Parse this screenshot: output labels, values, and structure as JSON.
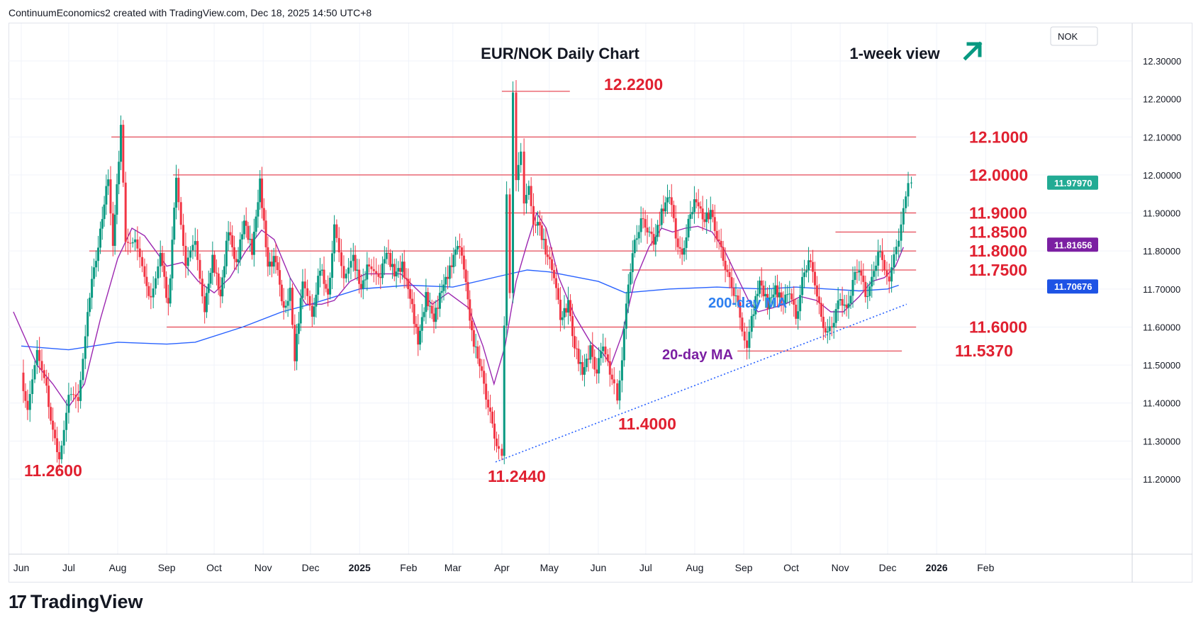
{
  "header": {
    "text": "ContinuumEconomics2 created with TradingView.com, Dec 18, 2025 14:50 UTC+8"
  },
  "chart_data": {
    "type": "candlestick",
    "title": "EUR/NOK Daily Chart",
    "view_label": "1-week view",
    "currency": "NOK",
    "y_ticks": [
      "12.30000",
      "12.20000",
      "12.10000",
      "12.00000",
      "11.90000",
      "11.80000",
      "11.70000",
      "11.60000",
      "11.50000",
      "11.40000",
      "11.30000",
      "11.20000"
    ],
    "ylim": [
      11.13,
      12.37
    ],
    "x_labels": [
      {
        "label": "Jun",
        "day": 0
      },
      {
        "label": "Jul",
        "day": 30
      },
      {
        "label": "Aug",
        "day": 61
      },
      {
        "label": "Sep",
        "day": 92
      },
      {
        "label": "Oct",
        "day": 122
      },
      {
        "label": "Nov",
        "day": 153
      },
      {
        "label": "Dec",
        "day": 183
      },
      {
        "label": "2025",
        "day": 214
      },
      {
        "label": "Feb",
        "day": 245
      },
      {
        "label": "Mar",
        "day": 273
      },
      {
        "label": "Apr",
        "day": 304
      },
      {
        "label": "May",
        "day": 334
      },
      {
        "label": "Jun",
        "day": 365
      },
      {
        "label": "Jul",
        "day": 395
      },
      {
        "label": "Aug",
        "day": 426
      },
      {
        "label": "Sep",
        "day": 457
      },
      {
        "label": "Oct",
        "day": 487
      },
      {
        "label": "Nov",
        "day": 518
      },
      {
        "label": "Dec",
        "day": 548
      },
      {
        "label": "2026",
        "day": 579
      },
      {
        "label": "Feb",
        "day": 610
      }
    ],
    "levels": [
      {
        "label": "12.2200",
        "value": 12.22,
        "from_day": 304,
        "to_day": 347
      },
      {
        "label": "12.1000",
        "value": 12.1,
        "from_day": 57,
        "to_day": 566
      },
      {
        "label": "12.0000",
        "value": 12.0,
        "from_day": 96,
        "to_day": 566
      },
      {
        "label": "11.9000",
        "value": 11.9,
        "from_day": 306,
        "to_day": 566
      },
      {
        "label": "11.8500",
        "value": 11.85,
        "from_day": 515,
        "to_day": 566
      },
      {
        "label": "11.8000",
        "value": 11.8,
        "from_day": 43,
        "to_day": 566
      },
      {
        "label": "11.7500",
        "value": 11.75,
        "from_day": 380,
        "to_day": 566
      },
      {
        "label": "11.6000",
        "value": 11.6,
        "from_day": 92,
        "to_day": 566
      },
      {
        "label": "11.5370",
        "value": 11.537,
        "from_day": 453,
        "to_day": 557
      }
    ],
    "extreme_labels": [
      {
        "label": "11.2600",
        "value": 11.26
      },
      {
        "label": "11.2440",
        "value": 11.244
      },
      {
        "label": "11.4000",
        "value": 11.4
      }
    ],
    "trendline": {
      "start_day": 300,
      "start_value": 11.245,
      "end_day": 560,
      "end_value": 11.66
    },
    "ma_labels": {
      "ma200": "200-day MA",
      "ma20": "20-day MA"
    },
    "ma200": [
      [
        0,
        11.55
      ],
      [
        30,
        11.54
      ],
      [
        61,
        11.56
      ],
      [
        92,
        11.555
      ],
      [
        110,
        11.56
      ],
      [
        140,
        11.6
      ],
      [
        165,
        11.64
      ],
      [
        183,
        11.66
      ],
      [
        214,
        11.7
      ],
      [
        245,
        11.71
      ],
      [
        273,
        11.705
      ],
      [
        304,
        11.735
      ],
      [
        320,
        11.75
      ],
      [
        334,
        11.745
      ],
      [
        365,
        11.72
      ],
      [
        382,
        11.69
      ],
      [
        410,
        11.7
      ],
      [
        440,
        11.705
      ],
      [
        470,
        11.7
      ],
      [
        490,
        11.705
      ],
      [
        510,
        11.7
      ],
      [
        530,
        11.695
      ],
      [
        548,
        11.7
      ],
      [
        555,
        11.71
      ]
    ],
    "ma20": [
      [
        -5,
        11.64
      ],
      [
        10,
        11.5
      ],
      [
        20,
        11.45
      ],
      [
        30,
        11.39
      ],
      [
        40,
        11.45
      ],
      [
        50,
        11.62
      ],
      [
        61,
        11.78
      ],
      [
        70,
        11.86
      ],
      [
        78,
        11.84
      ],
      [
        85,
        11.8
      ],
      [
        92,
        11.76
      ],
      [
        102,
        11.77
      ],
      [
        112,
        11.72
      ],
      [
        122,
        11.69
      ],
      [
        132,
        11.73
      ],
      [
        142,
        11.8
      ],
      [
        152,
        11.855
      ],
      [
        160,
        11.83
      ],
      [
        170,
        11.73
      ],
      [
        180,
        11.66
      ],
      [
        190,
        11.66
      ],
      [
        198,
        11.67
      ],
      [
        208,
        11.72
      ],
      [
        218,
        11.74
      ],
      [
        228,
        11.74
      ],
      [
        240,
        11.74
      ],
      [
        250,
        11.7
      ],
      [
        260,
        11.66
      ],
      [
        270,
        11.69
      ],
      [
        283,
        11.65
      ],
      [
        292,
        11.55
      ],
      [
        299,
        11.45
      ],
      [
        306,
        11.55
      ],
      [
        313,
        11.72
      ],
      [
        320,
        11.82
      ],
      [
        326,
        11.9
      ],
      [
        332,
        11.86
      ],
      [
        340,
        11.73
      ],
      [
        350,
        11.63
      ],
      [
        360,
        11.56
      ],
      [
        368,
        11.53
      ],
      [
        373,
        11.5
      ],
      [
        380,
        11.58
      ],
      [
        388,
        11.72
      ],
      [
        397,
        11.81
      ],
      [
        405,
        11.86
      ],
      [
        412,
        11.85
      ],
      [
        420,
        11.86
      ],
      [
        428,
        11.865
      ],
      [
        437,
        11.85
      ],
      [
        445,
        11.8
      ],
      [
        453,
        11.73
      ],
      [
        460,
        11.67
      ],
      [
        466,
        11.64
      ],
      [
        475,
        11.65
      ],
      [
        483,
        11.66
      ],
      [
        493,
        11.68
      ],
      [
        503,
        11.67
      ],
      [
        512,
        11.64
      ],
      [
        520,
        11.64
      ],
      [
        530,
        11.68
      ],
      [
        538,
        11.72
      ],
      [
        546,
        11.73
      ],
      [
        553,
        11.76
      ],
      [
        558,
        11.81
      ]
    ],
    "last_price": "11.97970",
    "tags": [
      {
        "label": "11.97970",
        "value": 11.9797,
        "color": "#22ab94"
      },
      {
        "label": "11.81656",
        "value": 11.81656,
        "color": "#7b1fa2"
      },
      {
        "label": "11.70676",
        "value": 11.70676,
        "color": "#1e53e5"
      }
    ],
    "swings": [
      [
        0,
        11.48
      ],
      [
        4,
        11.37
      ],
      [
        10,
        11.55
      ],
      [
        16,
        11.44
      ],
      [
        20,
        11.32
      ],
      [
        24,
        11.26
      ],
      [
        30,
        11.42
      ],
      [
        36,
        11.4
      ],
      [
        42,
        11.65
      ],
      [
        50,
        11.85
      ],
      [
        55,
        12.0
      ],
      [
        58,
        11.82
      ],
      [
        63,
        12.12
      ],
      [
        66,
        11.82
      ],
      [
        72,
        11.84
      ],
      [
        78,
        11.72
      ],
      [
        82,
        11.68
      ],
      [
        88,
        11.8
      ],
      [
        93,
        11.65
      ],
      [
        98,
        12.0
      ],
      [
        104,
        11.76
      ],
      [
        110,
        11.82
      ],
      [
        116,
        11.65
      ],
      [
        121,
        11.78
      ],
      [
        126,
        11.68
      ],
      [
        131,
        11.86
      ],
      [
        136,
        11.76
      ],
      [
        141,
        11.88
      ],
      [
        146,
        11.8
      ],
      [
        151,
        11.98
      ],
      [
        156,
        11.76
      ],
      [
        161,
        11.78
      ],
      [
        166,
        11.64
      ],
      [
        170,
        11.7
      ],
      [
        173,
        11.52
      ],
      [
        178,
        11.72
      ],
      [
        184,
        11.62
      ],
      [
        189,
        11.76
      ],
      [
        194,
        11.68
      ],
      [
        198,
        11.86
      ],
      [
        204,
        11.74
      ],
      [
        210,
        11.78
      ],
      [
        215,
        11.7
      ],
      [
        220,
        11.77
      ],
      [
        226,
        11.72
      ],
      [
        231,
        11.8
      ],
      [
        236,
        11.74
      ],
      [
        241,
        11.76
      ],
      [
        246,
        11.68
      ],
      [
        251,
        11.56
      ],
      [
        256,
        11.68
      ],
      [
        261,
        11.62
      ],
      [
        266,
        11.7
      ],
      [
        271,
        11.75
      ],
      [
        276,
        11.82
      ],
      [
        280,
        11.76
      ],
      [
        285,
        11.58
      ],
      [
        290,
        11.5
      ],
      [
        294,
        11.42
      ],
      [
        298,
        11.34
      ],
      [
        302,
        11.27
      ],
      [
        304,
        11.26
      ],
      [
        307,
        11.96
      ],
      [
        309,
        11.7
      ],
      [
        311,
        12.22
      ],
      [
        313,
        11.98
      ],
      [
        316,
        12.05
      ],
      [
        318,
        11.92
      ],
      [
        321,
        11.98
      ],
      [
        324,
        11.88
      ],
      [
        328,
        11.86
      ],
      [
        333,
        11.78
      ],
      [
        337,
        11.74
      ],
      [
        341,
        11.62
      ],
      [
        346,
        11.66
      ],
      [
        350,
        11.55
      ],
      [
        355,
        11.48
      ],
      [
        360,
        11.54
      ],
      [
        364,
        11.48
      ],
      [
        368,
        11.56
      ],
      [
        371,
        11.51
      ],
      [
        375,
        11.44
      ],
      [
        377,
        11.4
      ],
      [
        380,
        11.52
      ],
      [
        384,
        11.72
      ],
      [
        388,
        11.82
      ],
      [
        392,
        11.88
      ],
      [
        396,
        11.86
      ],
      [
        400,
        11.82
      ],
      [
        405,
        11.9
      ],
      [
        410,
        11.95
      ],
      [
        414,
        11.84
      ],
      [
        418,
        11.78
      ],
      [
        422,
        11.88
      ],
      [
        427,
        11.94
      ],
      [
        431,
        11.88
      ],
      [
        436,
        11.9
      ],
      [
        440,
        11.84
      ],
      [
        444,
        11.78
      ],
      [
        448,
        11.72
      ],
      [
        452,
        11.68
      ],
      [
        456,
        11.6
      ],
      [
        459,
        11.55
      ],
      [
        462,
        11.62
      ],
      [
        467,
        11.72
      ],
      [
        472,
        11.66
      ],
      [
        477,
        11.7
      ],
      [
        482,
        11.66
      ],
      [
        486,
        11.7
      ],
      [
        490,
        11.62
      ],
      [
        494,
        11.72
      ],
      [
        498,
        11.78
      ],
      [
        502,
        11.72
      ],
      [
        506,
        11.62
      ],
      [
        510,
        11.58
      ],
      [
        514,
        11.62
      ],
      [
        518,
        11.68
      ],
      [
        522,
        11.64
      ],
      [
        526,
        11.72
      ],
      [
        530,
        11.76
      ],
      [
        534,
        11.68
      ],
      [
        538,
        11.72
      ],
      [
        542,
        11.8
      ],
      [
        546,
        11.76
      ],
      [
        549,
        11.72
      ],
      [
        552,
        11.78
      ],
      [
        555,
        11.82
      ],
      [
        558,
        11.92
      ],
      [
        561,
        11.99
      ],
      [
        563,
        11.98
      ]
    ]
  },
  "footer": {
    "logo_mark": "17",
    "logo_text": "TradingView"
  }
}
